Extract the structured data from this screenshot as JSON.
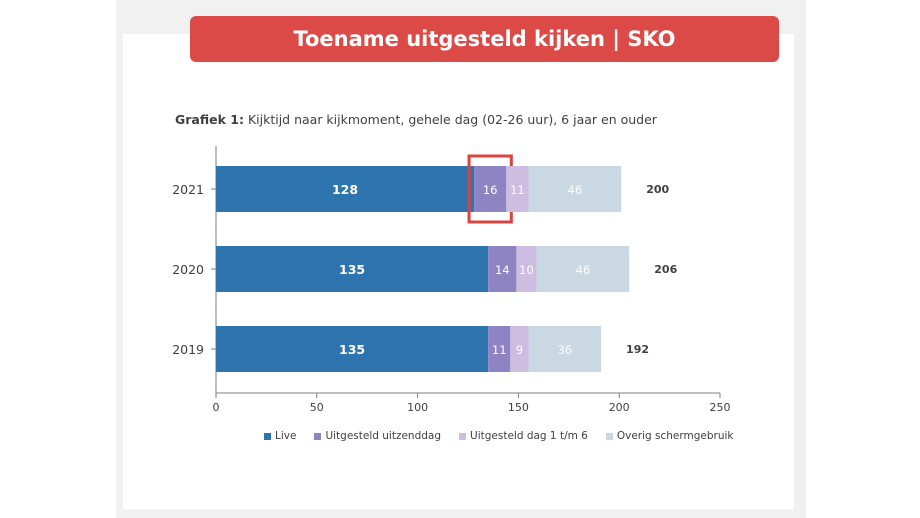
{
  "slide": {
    "title": "Toename uitgesteld kijken | SKO"
  },
  "caption": {
    "bold": "Grafiek 1:",
    "text": " Kijktijd naar kijkmoment, gehele dag (02-26 uur), 6 jaar en ouder"
  },
  "colors": {
    "banner": "#dc4a47",
    "highlight": "#d9443f",
    "live": "#2e75b0",
    "uitzenddag": "#8e84c4",
    "dag1t6": "#cdbde0",
    "overig": "#c9d8e3"
  },
  "chart_data": {
    "type": "bar",
    "orientation": "horizontal",
    "stacked": true,
    "categories": [
      "2021",
      "2020",
      "2019"
    ],
    "series": [
      {
        "name": "Live",
        "color": "#2e75b0",
        "values": [
          128,
          135,
          135
        ]
      },
      {
        "name": "Uitgesteld uitzenddag",
        "color": "#8e84c4",
        "values": [
          16,
          14,
          11
        ]
      },
      {
        "name": "Uitgesteld dag 1 t/m 6",
        "color": "#cdbde0",
        "values": [
          11,
          10,
          9
        ]
      },
      {
        "name": "Overig schermgebruik",
        "color": "#c9d8e3",
        "values": [
          46,
          46,
          36
        ]
      }
    ],
    "totals": [
      200,
      206,
      192
    ],
    "xlim": [
      0,
      250
    ],
    "xticks": [
      0,
      50,
      100,
      150,
      200,
      250
    ],
    "grid": false,
    "legend": "bottom",
    "highlight": {
      "category": "2021",
      "series": "Uitgesteld uitzenddag"
    }
  }
}
